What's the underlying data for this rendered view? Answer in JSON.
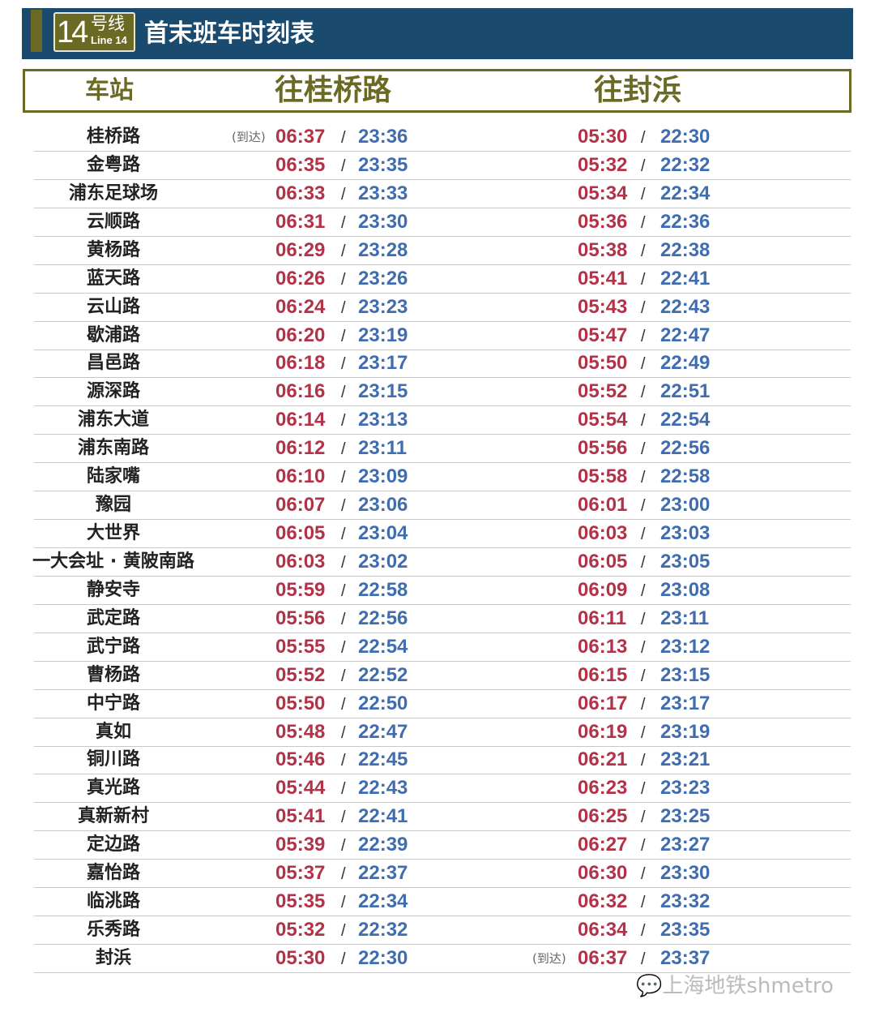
{
  "header": {
    "line_number": "14",
    "line_zh": "号线",
    "line_en": "Line 14",
    "title": "首末班车时刻表"
  },
  "columns": {
    "station": "车站",
    "dir1": "往桂桥路",
    "dir2": "往封浜"
  },
  "arrive_label": "(到达)",
  "separator": "/",
  "colors": {
    "first": "#b23348",
    "last": "#3f6db0",
    "header_bg": "#1b4a6f",
    "accent": "#6b6a24"
  },
  "rows": [
    {
      "station": "桂桥路",
      "d1": [
        "06:37",
        "23:36"
      ],
      "d2": [
        "05:30",
        "22:30"
      ],
      "d1_arrive": true
    },
    {
      "station": "金粤路",
      "d1": [
        "06:35",
        "23:35"
      ],
      "d2": [
        "05:32",
        "22:32"
      ]
    },
    {
      "station": "浦东足球场",
      "d1": [
        "06:33",
        "23:33"
      ],
      "d2": [
        "05:34",
        "22:34"
      ]
    },
    {
      "station": "云顺路",
      "d1": [
        "06:31",
        "23:30"
      ],
      "d2": [
        "05:36",
        "22:36"
      ]
    },
    {
      "station": "黄杨路",
      "d1": [
        "06:29",
        "23:28"
      ],
      "d2": [
        "05:38",
        "22:38"
      ]
    },
    {
      "station": "蓝天路",
      "d1": [
        "06:26",
        "23:26"
      ],
      "d2": [
        "05:41",
        "22:41"
      ]
    },
    {
      "station": "云山路",
      "d1": [
        "06:24",
        "23:23"
      ],
      "d2": [
        "05:43",
        "22:43"
      ]
    },
    {
      "station": "歇浦路",
      "d1": [
        "06:20",
        "23:19"
      ],
      "d2": [
        "05:47",
        "22:47"
      ]
    },
    {
      "station": "昌邑路",
      "d1": [
        "06:18",
        "23:17"
      ],
      "d2": [
        "05:50",
        "22:49"
      ]
    },
    {
      "station": "源深路",
      "d1": [
        "06:16",
        "23:15"
      ],
      "d2": [
        "05:52",
        "22:51"
      ]
    },
    {
      "station": "浦东大道",
      "d1": [
        "06:14",
        "23:13"
      ],
      "d2": [
        "05:54",
        "22:54"
      ]
    },
    {
      "station": "浦东南路",
      "d1": [
        "06:12",
        "23:11"
      ],
      "d2": [
        "05:56",
        "22:56"
      ]
    },
    {
      "station": "陆家嘴",
      "d1": [
        "06:10",
        "23:09"
      ],
      "d2": [
        "05:58",
        "22:58"
      ]
    },
    {
      "station": "豫园",
      "d1": [
        "06:07",
        "23:06"
      ],
      "d2": [
        "06:01",
        "23:00"
      ]
    },
    {
      "station": "大世界",
      "d1": [
        "06:05",
        "23:04"
      ],
      "d2": [
        "06:03",
        "23:03"
      ]
    },
    {
      "station": "一大会址 · 黄陂南路",
      "d1": [
        "06:03",
        "23:02"
      ],
      "d2": [
        "06:05",
        "23:05"
      ]
    },
    {
      "station": "静安寺",
      "d1": [
        "05:59",
        "22:58"
      ],
      "d2": [
        "06:09",
        "23:08"
      ]
    },
    {
      "station": "武定路",
      "d1": [
        "05:56",
        "22:56"
      ],
      "d2": [
        "06:11",
        "23:11"
      ]
    },
    {
      "station": "武宁路",
      "d1": [
        "05:55",
        "22:54"
      ],
      "d2": [
        "06:13",
        "23:12"
      ]
    },
    {
      "station": "曹杨路",
      "d1": [
        "05:52",
        "22:52"
      ],
      "d2": [
        "06:15",
        "23:15"
      ]
    },
    {
      "station": "中宁路",
      "d1": [
        "05:50",
        "22:50"
      ],
      "d2": [
        "06:17",
        "23:17"
      ]
    },
    {
      "station": "真如",
      "d1": [
        "05:48",
        "22:47"
      ],
      "d2": [
        "06:19",
        "23:19"
      ]
    },
    {
      "station": "铜川路",
      "d1": [
        "05:46",
        "22:45"
      ],
      "d2": [
        "06:21",
        "23:21"
      ]
    },
    {
      "station": "真光路",
      "d1": [
        "05:44",
        "22:43"
      ],
      "d2": [
        "06:23",
        "23:23"
      ]
    },
    {
      "station": "真新新村",
      "d1": [
        "05:41",
        "22:41"
      ],
      "d2": [
        "06:25",
        "23:25"
      ]
    },
    {
      "station": "定边路",
      "d1": [
        "05:39",
        "22:39"
      ],
      "d2": [
        "06:27",
        "23:27"
      ]
    },
    {
      "station": "嘉怡路",
      "d1": [
        "05:37",
        "22:37"
      ],
      "d2": [
        "06:30",
        "23:30"
      ]
    },
    {
      "station": "临洮路",
      "d1": [
        "05:35",
        "22:34"
      ],
      "d2": [
        "06:32",
        "23:32"
      ]
    },
    {
      "station": "乐秀路",
      "d1": [
        "05:32",
        "22:32"
      ],
      "d2": [
        "06:34",
        "23:35"
      ]
    },
    {
      "station": "封浜",
      "d1": [
        "05:30",
        "22:30"
      ],
      "d2": [
        "06:37",
        "23:37"
      ],
      "d2_arrive": true
    }
  ],
  "watermark": "上海地铁shmetro"
}
